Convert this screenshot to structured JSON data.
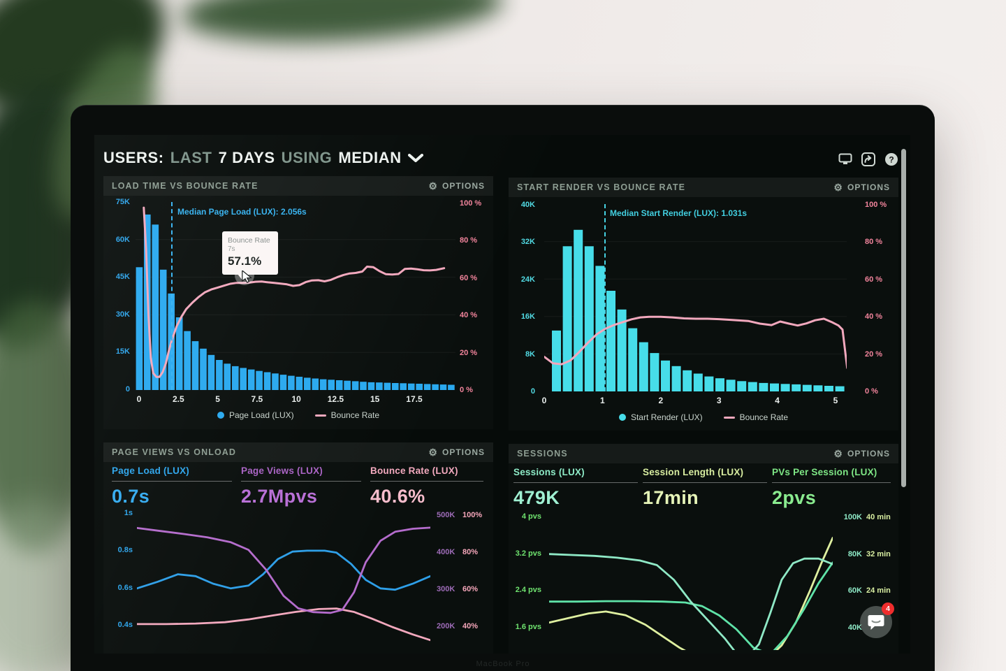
{
  "laptop": {
    "brand": "MacBook Pro"
  },
  "header": {
    "segments": [
      {
        "text": "USERS:"
      },
      {
        "text": "LAST"
      },
      {
        "text": "7 DAYS"
      },
      {
        "text": "USING"
      },
      {
        "text": "MEDIAN"
      }
    ],
    "icons": [
      "display-icon",
      "share-icon",
      "help-icon"
    ]
  },
  "chat": {
    "badge": "4"
  },
  "chart_data": [
    {
      "type": "bar+line",
      "title": "LOAD TIME VS BOUNCE RATE",
      "options_label": "OPTIONS",
      "y_left": [
        "75K",
        "60K",
        "45K",
        "30K",
        "15K",
        "0"
      ],
      "y_right": [
        "100 %",
        "80 %",
        "60 %",
        "40 %",
        "20 %",
        "0 %"
      ],
      "x_ticks": [
        "0",
        "2.5",
        "5",
        "7.5",
        "10",
        "12.5",
        "15",
        "17.5"
      ],
      "annotation": "Median Page Load (LUX): 2.056s",
      "median_x": 2.056,
      "tooltip": {
        "label": "Bounce Rate",
        "time": "7s",
        "value": "57.1%"
      },
      "bars": {
        "name": "Page Load (LUX)",
        "color": "#2aa9ef",
        "ymax_k": 75,
        "bin_width_s": 0.5,
        "values_k": [
          49,
          70,
          66,
          48,
          38.5,
          29,
          23.5,
          19.5,
          16.5,
          14,
          12,
          10.5,
          9.5,
          8.8,
          8.2,
          7.6,
          7.1,
          6.6,
          6.1,
          5.7,
          5.3,
          4.9,
          4.6,
          4.3,
          4.1,
          3.9,
          3.7,
          3.5,
          3.3,
          3.1,
          3.0,
          2.9,
          2.8,
          2.7,
          2.6,
          2.5,
          2.4,
          2.3,
          2.2,
          2.1
        ]
      },
      "line": {
        "name": "Bounce Rate",
        "color": "#f2a8bd",
        "range": [
          0,
          100
        ],
        "width": 3,
        "points": [
          [
            0.3,
            97
          ],
          [
            0.45,
            75
          ],
          [
            0.6,
            40
          ],
          [
            0.75,
            17
          ],
          [
            0.9,
            9
          ],
          [
            1.1,
            7
          ],
          [
            1.3,
            7
          ],
          [
            1.5,
            9.5
          ],
          [
            1.7,
            14
          ],
          [
            1.9,
            21
          ],
          [
            2.1,
            27
          ],
          [
            2.4,
            34
          ],
          [
            2.7,
            39
          ],
          [
            3.0,
            43
          ],
          [
            3.4,
            46.5
          ],
          [
            3.8,
            49.5
          ],
          [
            4.2,
            52
          ],
          [
            4.6,
            53.5
          ],
          [
            5.0,
            54.5
          ],
          [
            5.4,
            55.5
          ],
          [
            5.8,
            56.5
          ],
          [
            6.2,
            57
          ],
          [
            6.6,
            57
          ],
          [
            7.0,
            57.1
          ],
          [
            7.4,
            57.6
          ],
          [
            7.8,
            57.7
          ],
          [
            8.2,
            57.3
          ],
          [
            8.6,
            57
          ],
          [
            9.0,
            56.6
          ],
          [
            9.4,
            56.2
          ],
          [
            9.8,
            55.4
          ],
          [
            10.2,
            55.8
          ],
          [
            10.6,
            57.4
          ],
          [
            11.0,
            58.3
          ],
          [
            11.4,
            58.4
          ],
          [
            11.8,
            57.8
          ],
          [
            12.2,
            58.6
          ],
          [
            12.6,
            60
          ],
          [
            13.0,
            61.2
          ],
          [
            13.4,
            62
          ],
          [
            13.8,
            62.3
          ],
          [
            14.2,
            63
          ],
          [
            14.5,
            65.6
          ],
          [
            14.9,
            65.3
          ],
          [
            15.3,
            63.2
          ],
          [
            15.7,
            61.6
          ],
          [
            16.1,
            61.4
          ],
          [
            16.5,
            61.7
          ],
          [
            16.9,
            64.4
          ],
          [
            17.3,
            64.6
          ],
          [
            17.7,
            64.2
          ],
          [
            18.1,
            63.7
          ],
          [
            18.5,
            63.6
          ],
          [
            18.9,
            63.9
          ],
          [
            19.4,
            64.8
          ]
        ]
      },
      "legend": [
        {
          "marker": "dot",
          "label": "Page Load (LUX)",
          "color": "#2aa9ef"
        },
        {
          "marker": "line",
          "label": "Bounce Rate",
          "color": "#f2a8bd"
        }
      ]
    },
    {
      "type": "bar+line",
      "title": "START RENDER VS BOUNCE RATE",
      "options_label": "OPTIONS",
      "y_left": [
        "40K",
        "32K",
        "24K",
        "16K",
        "8K",
        "0"
      ],
      "y_right": [
        "100 %",
        "80 %",
        "60 %",
        "40 %",
        "20 %",
        "0 %"
      ],
      "x_ticks": [
        "0",
        "1",
        "2",
        "3",
        "4",
        "5"
      ],
      "annotation": "Median Start Render (LUX): 1.031s",
      "median_x": 1.031,
      "bars": {
        "name": "Start Render (LUX)",
        "color": "#47dde9",
        "ymax_k": 40,
        "bin_width_s": 0.185,
        "values_k": [
          13,
          31,
          34.5,
          31,
          26.8,
          21.5,
          17.5,
          13.5,
          10.5,
          8.2,
          6.6,
          5.4,
          4.5,
          3.8,
          3.2,
          2.8,
          2.5,
          2.2,
          2.0,
          1.8,
          1.7,
          1.6,
          1.5,
          1.4,
          1.3,
          1.2,
          1.1
        ]
      },
      "line": {
        "name": "Bounce Rate",
        "color": "#f2a8bd",
        "range": [
          0,
          100
        ],
        "width": 3,
        "points": [
          [
            0,
            18.5
          ],
          [
            0.15,
            15
          ],
          [
            0.3,
            14.5
          ],
          [
            0.45,
            16.5
          ],
          [
            0.6,
            21
          ],
          [
            0.75,
            26
          ],
          [
            0.9,
            30.5
          ],
          [
            1.05,
            33.5
          ],
          [
            1.2,
            35.5
          ],
          [
            1.35,
            37
          ],
          [
            1.5,
            38.5
          ],
          [
            1.65,
            39.5
          ],
          [
            1.8,
            39.8
          ],
          [
            2.0,
            39.8
          ],
          [
            2.2,
            39.5
          ],
          [
            2.4,
            39
          ],
          [
            2.6,
            38.8
          ],
          [
            2.8,
            38.8
          ],
          [
            3.0,
            38.6
          ],
          [
            3.2,
            38.2
          ],
          [
            3.5,
            37.6
          ],
          [
            3.7,
            36.2
          ],
          [
            3.9,
            35.4
          ],
          [
            4.05,
            37.3
          ],
          [
            4.2,
            36.2
          ],
          [
            4.35,
            35.2
          ],
          [
            4.5,
            36.3
          ],
          [
            4.65,
            38
          ],
          [
            4.8,
            38.8
          ],
          [
            4.95,
            36.8
          ],
          [
            5.05,
            35.2
          ],
          [
            5.12,
            33
          ],
          [
            5.2,
            12.5
          ]
        ]
      },
      "legend": [
        {
          "marker": "dot",
          "label": "Start Render (LUX)",
          "color": "#47dde9"
        },
        {
          "marker": "line",
          "label": "Bounce Rate",
          "color": "#f2a8bd"
        }
      ]
    },
    {
      "type": "line-multi",
      "title": "PAGE VIEWS VS ONLOAD",
      "options_label": "OPTIONS",
      "metrics": [
        {
          "label": "Page Load (LUX)",
          "value": "0.7s",
          "label_color": "#2da5ec",
          "value_color": "#34abf0"
        },
        {
          "label": "Page Views (LUX)",
          "value": "2.7Mpvs",
          "label_color": "#a963c4",
          "value_color": "#b86fd6"
        },
        {
          "label": "Bounce Rate (LUX)",
          "value": "40.6%",
          "label_color": "#f2a9be",
          "value_color": "#f7bdcc"
        }
      ],
      "y_left": [
        "1s",
        "0.8s",
        "0.6s",
        "0.4s"
      ],
      "y_right_views": [
        "500K",
        "400K",
        "300K",
        "200K"
      ],
      "y_right_bounce": [
        "100%",
        "80%",
        "60%",
        "40%"
      ],
      "series": [
        {
          "name": "Bounce Rate",
          "color": "#f2a8bd",
          "width": 2.8,
          "range": [
            28.2,
            103.4
          ],
          "points": [
            [
              0,
              42
            ],
            [
              0.1,
              42
            ],
            [
              0.2,
              42.3
            ],
            [
              0.3,
              43
            ],
            [
              0.38,
              44.5
            ],
            [
              0.46,
              46.5
            ],
            [
              0.54,
              48.5
            ],
            [
              0.62,
              50
            ],
            [
              0.68,
              50.3
            ],
            [
              0.74,
              48.5
            ],
            [
              0.8,
              45
            ],
            [
              0.87,
              40.5
            ],
            [
              0.94,
              36.5
            ],
            [
              1,
              33.5
            ]
          ]
        },
        {
          "name": "Page Load",
          "color": "#2e9fe8",
          "width": 2.8,
          "range": [
            0.273,
            1.022
          ],
          "points": [
            [
              0,
              0.6
            ],
            [
              0.07,
              0.635
            ],
            [
              0.14,
              0.675
            ],
            [
              0.2,
              0.665
            ],
            [
              0.26,
              0.625
            ],
            [
              0.32,
              0.6
            ],
            [
              0.38,
              0.615
            ],
            [
              0.43,
              0.675
            ],
            [
              0.48,
              0.755
            ],
            [
              0.53,
              0.795
            ],
            [
              0.58,
              0.8
            ],
            [
              0.64,
              0.8
            ],
            [
              0.68,
              0.79
            ],
            [
              0.73,
              0.73
            ],
            [
              0.78,
              0.645
            ],
            [
              0.83,
              0.6
            ],
            [
              0.88,
              0.593
            ],
            [
              0.94,
              0.625
            ],
            [
              1,
              0.665
            ]
          ]
        },
        {
          "name": "Page Views",
          "color": "#b46ccc",
          "width": 2.8,
          "range": [
            141,
            517
          ],
          "points": [
            [
              0,
              466
            ],
            [
              0.08,
              458
            ],
            [
              0.16,
              450
            ],
            [
              0.24,
              441
            ],
            [
              0.32,
              428
            ],
            [
              0.38,
              408
            ],
            [
              0.44,
              355
            ],
            [
              0.5,
              285
            ],
            [
              0.55,
              252
            ],
            [
              0.6,
              242
            ],
            [
              0.66,
              240
            ],
            [
              0.7,
              248
            ],
            [
              0.74,
              295
            ],
            [
              0.78,
              375
            ],
            [
              0.83,
              432
            ],
            [
              0.88,
              456
            ],
            [
              0.94,
              464
            ],
            [
              1,
              467
            ]
          ]
        }
      ]
    },
    {
      "type": "line-multi",
      "title": "SESSIONS",
      "options_label": "OPTIONS",
      "metrics": [
        {
          "label": "Sessions (LUX)",
          "value": "479K",
          "label_color": "#8deac6",
          "value_color": "#9ff0d2"
        },
        {
          "label": "Session Length (LUX)",
          "value": "17min",
          "label_color": "#d8eda0",
          "value_color": "#e6f4b8"
        },
        {
          "label": "PVs Per Session (LUX)",
          "value": "2pvs",
          "label_color": "#7ee685",
          "value_color": "#8aeb8f"
        }
      ],
      "y_left": [
        "4 pvs",
        "3.2 pvs",
        "2.4 pvs",
        "1.6 pvs"
      ],
      "y_right_sessions": [
        "100K",
        "80K",
        "60K",
        "40K"
      ],
      "y_right_length": [
        "40 min",
        "32 min",
        "24 min"
      ],
      "series": [
        {
          "name": "Session Length",
          "color": "#dff0a0",
          "width": 2.8,
          "range": [
            11.0,
            40.9
          ],
          "points": [
            [
              0,
              17
            ],
            [
              0.07,
              18
            ],
            [
              0.14,
              19
            ],
            [
              0.2,
              19.4
            ],
            [
              0.27,
              18.6
            ],
            [
              0.34,
              16.5
            ],
            [
              0.4,
              14
            ],
            [
              0.46,
              11.5
            ],
            [
              0.52,
              9.5
            ],
            [
              0.58,
              8
            ],
            [
              0.64,
              7
            ],
            [
              0.7,
              7
            ],
            [
              0.76,
              8.5
            ],
            [
              0.82,
              12
            ],
            [
              0.87,
              17
            ],
            [
              0.92,
              24
            ],
            [
              0.96,
              30
            ],
            [
              1,
              35.5
            ]
          ]
        },
        {
          "name": "PVs Per Session",
          "color": "#5fe3a8",
          "width": 2.8,
          "range": [
            1.097,
            4.076
          ],
          "points": [
            [
              0,
              2.15
            ],
            [
              0.1,
              2.15
            ],
            [
              0.2,
              2.16
            ],
            [
              0.3,
              2.16
            ],
            [
              0.4,
              2.15
            ],
            [
              0.48,
              2.13
            ],
            [
              0.54,
              2.05
            ],
            [
              0.6,
              1.85
            ],
            [
              0.66,
              1.55
            ],
            [
              0.72,
              1.15
            ],
            [
              0.78,
              1.0
            ],
            [
              0.84,
              1.4
            ],
            [
              0.9,
              2.0
            ],
            [
              0.95,
              2.55
            ],
            [
              1,
              3.0
            ]
          ]
        },
        {
          "name": "Sessions",
          "color": "#8fe9c6",
          "width": 2.8,
          "range": [
            27.8,
            102.3
          ],
          "points": [
            [
              0,
              80
            ],
            [
              0.08,
              79.5
            ],
            [
              0.16,
              79
            ],
            [
              0.24,
              78
            ],
            [
              0.32,
              76.5
            ],
            [
              0.38,
              74
            ],
            [
              0.44,
              66
            ],
            [
              0.5,
              54
            ],
            [
              0.56,
              44
            ],
            [
              0.62,
              34
            ],
            [
              0.66,
              26
            ],
            [
              0.7,
              24
            ],
            [
              0.74,
              31
            ],
            [
              0.78,
              48
            ],
            [
              0.82,
              66
            ],
            [
              0.86,
              75
            ],
            [
              0.9,
              77.5
            ],
            [
              0.95,
              77.5
            ],
            [
              1,
              74.5
            ]
          ]
        }
      ]
    }
  ]
}
